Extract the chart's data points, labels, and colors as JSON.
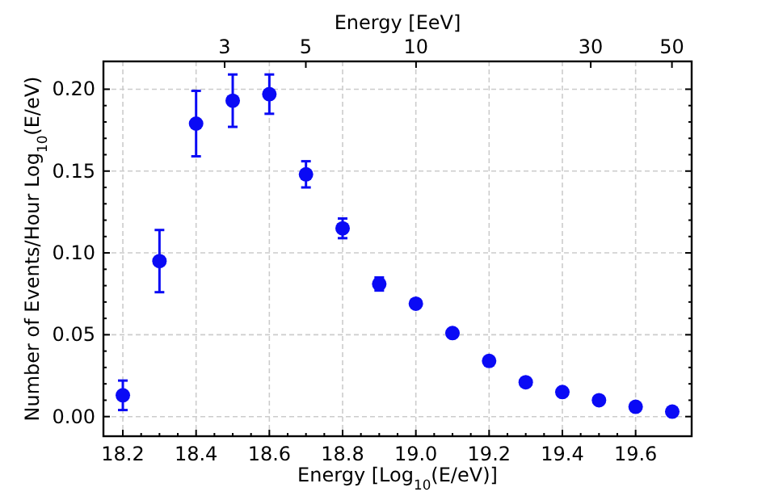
{
  "chart_data": {
    "type": "scatter",
    "xlabel": "Energy [Log$_{10}$(E/eV)]",
    "ylabel": "Number of Events/Hour Log$_{10}$(E/eV)",
    "x2label": "Energy [EeV]",
    "xlim": [
      18.147,
      19.753
    ],
    "xticks": [
      {
        "value": 18.2,
        "label": "18.2"
      },
      {
        "value": 18.4,
        "label": "18.4"
      },
      {
        "value": 18.6,
        "label": "18.6"
      },
      {
        "value": 18.8,
        "label": "18.8"
      },
      {
        "value": 19.0,
        "label": "19.0"
      },
      {
        "value": 19.2,
        "label": "19.2"
      },
      {
        "value": 19.4,
        "label": "19.4"
      },
      {
        "value": 19.6,
        "label": "19.6"
      }
    ],
    "x2lim": [
      1.4,
      56.6
    ],
    "x2ticks": [
      3,
      5,
      10,
      30,
      50
    ],
    "log": "x2",
    "ylim": [
      -0.012,
      0.217
    ],
    "yticks": [
      {
        "value": 0,
        "label": "0.00"
      },
      {
        "value": 0.05,
        "label": "0.05"
      },
      {
        "value": 0.1,
        "label": "0.10"
      },
      {
        "value": 0.15,
        "label": "0.15"
      },
      {
        "value": 0.2,
        "label": "0.20"
      }
    ],
    "grid": true,
    "marker": "circle",
    "series": [
      {
        "color": "#0a0af5",
        "x": [
          18.2,
          18.3,
          18.4,
          18.5,
          18.6,
          18.7,
          18.8,
          18.9,
          19.0,
          19.1,
          19.2,
          19.3,
          19.4,
          19.5,
          19.6,
          19.7
        ],
        "values": [
          0.013,
          0.095,
          0.179,
          0.193,
          0.197,
          0.148,
          0.115,
          0.081,
          0.069,
          0.051,
          0.034,
          0.021,
          0.015,
          0.01,
          0.006,
          0.003
        ],
        "errors": [
          0.009,
          0.019,
          0.02,
          0.016,
          0.012,
          0.008,
          0.006,
          0.004,
          0.002,
          0.002,
          0.002,
          0.002,
          0.002,
          0.002,
          0.002,
          0.002
        ]
      }
    ]
  }
}
